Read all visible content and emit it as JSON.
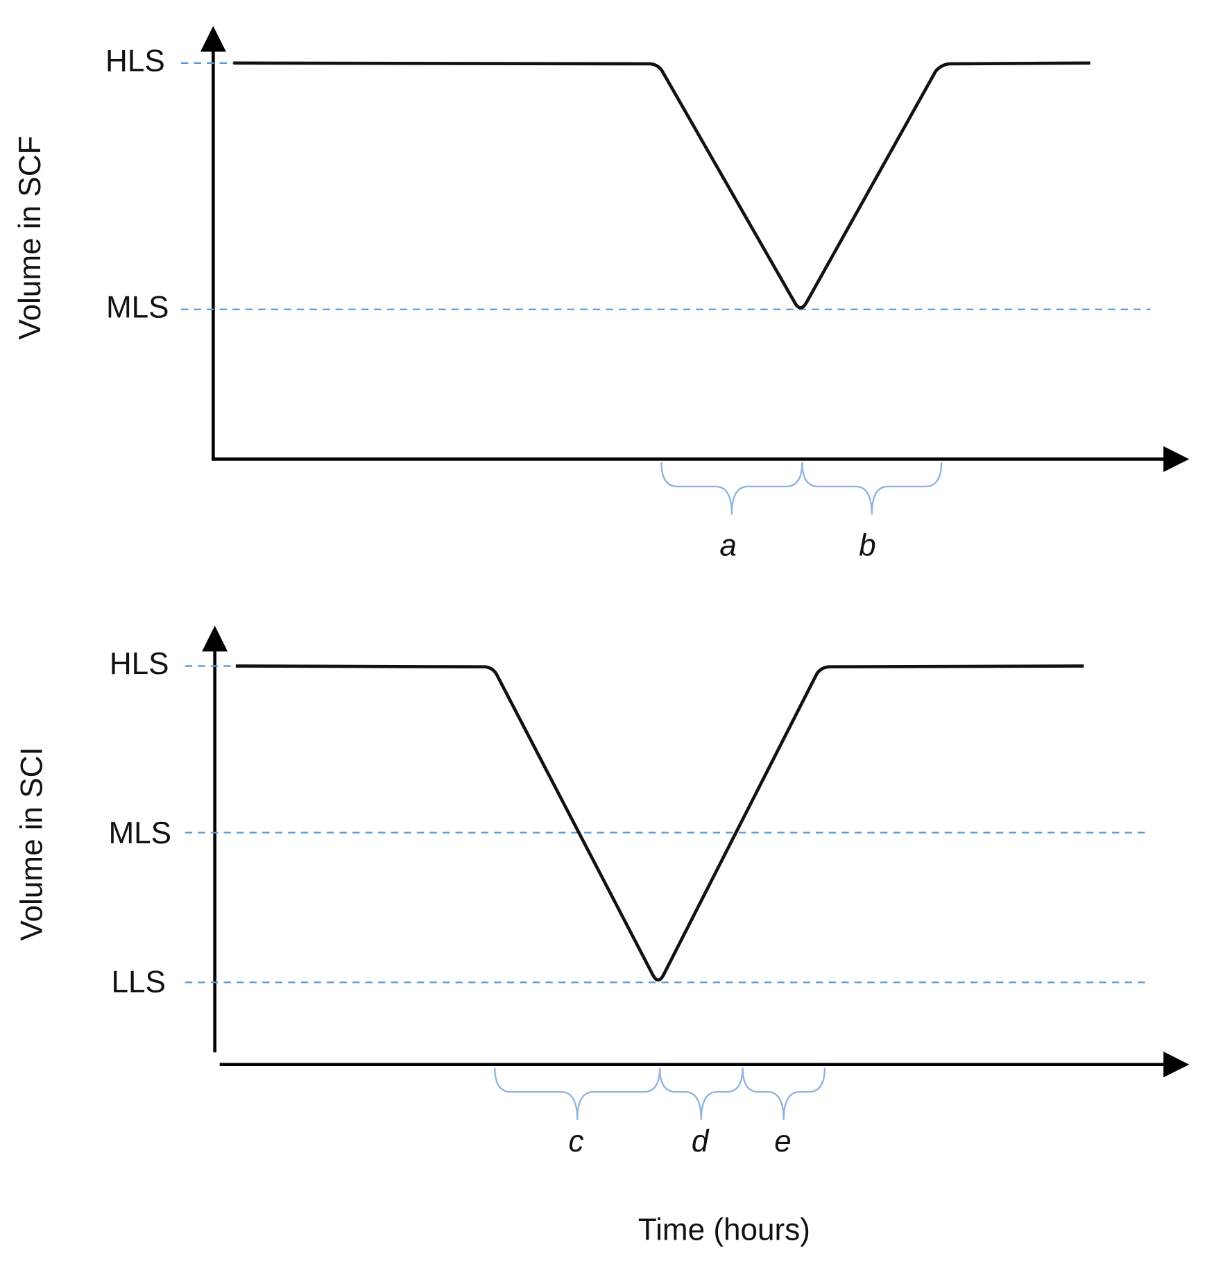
{
  "top": {
    "y_axis_label": "Volume in SCF",
    "levels": [
      "HLS",
      "MLS"
    ],
    "braces": [
      "a",
      "b"
    ]
  },
  "bottom": {
    "y_axis_label": "Volume in SCI",
    "levels": [
      "HLS",
      "MLS",
      "LLS"
    ],
    "braces": [
      "c",
      "d",
      "e"
    ]
  },
  "x_axis_label": "Time (hours)"
}
